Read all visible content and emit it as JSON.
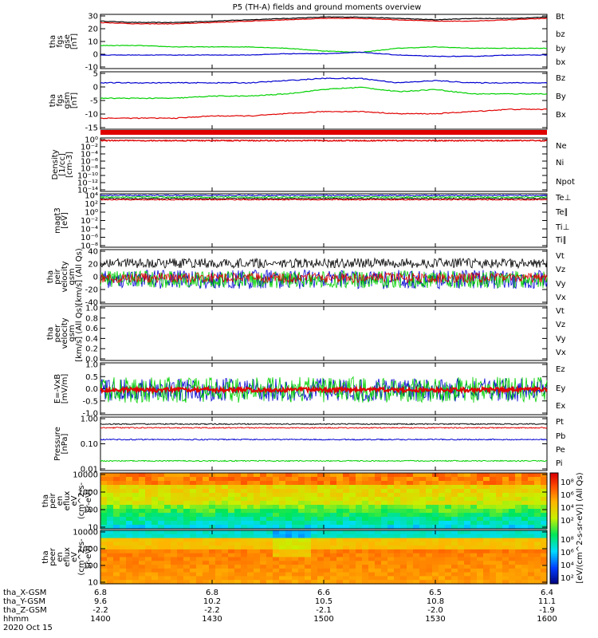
{
  "title": "P5 (TH-A) fields and ground moments overview",
  "colors": {
    "black": "#000000",
    "red": "#e00000",
    "green": "#00d000",
    "blue": "#0000d0"
  },
  "panels": [
    {
      "id": "fgs-gse",
      "ylabel": [
        "tha",
        "fgs",
        "gse",
        "[nT]"
      ],
      "yticks": [
        "30",
        "20",
        "10",
        "0",
        "-10"
      ],
      "legend": [
        {
          "label": "Bt",
          "color": "black"
        },
        {
          "label": "bz",
          "color": "red"
        },
        {
          "label": "by",
          "color": "green"
        },
        {
          "label": "bx",
          "color": "blue"
        }
      ],
      "ylim": [
        -10,
        30
      ],
      "series": [
        {
          "name": "Bt",
          "color": "black",
          "values": [
            25,
            24,
            24,
            25,
            26,
            27,
            28,
            28,
            27,
            26,
            27,
            27,
            28
          ]
        },
        {
          "name": "bz",
          "color": "red",
          "values": [
            24,
            23,
            23,
            24,
            25,
            26,
            27,
            27,
            26,
            25,
            25,
            26,
            27
          ]
        },
        {
          "name": "by",
          "color": "green",
          "values": [
            7,
            7,
            6,
            6,
            6,
            5,
            3,
            2,
            5,
            6,
            5,
            5,
            5
          ]
        },
        {
          "name": "bx",
          "color": "blue",
          "values": [
            0,
            0,
            0,
            0,
            0,
            1,
            1,
            2,
            0,
            -1,
            -1,
            0,
            0
          ]
        }
      ]
    },
    {
      "id": "fgs-gsm",
      "ylabel": [
        "tha",
        "fgs",
        "gsm",
        "[nT]"
      ],
      "yticks": [
        "5",
        "0",
        "-5",
        "-10",
        "-15"
      ],
      "legend": [
        {
          "label": "Bz",
          "color": "red"
        },
        {
          "label": "By",
          "color": "green"
        },
        {
          "label": "Bx",
          "color": "blue"
        }
      ],
      "ylim": [
        -18,
        8
      ],
      "series": [
        {
          "name": "By",
          "color": "green",
          "values": [
            -4,
            -4,
            -4,
            -3,
            -3,
            -2,
            0,
            1,
            -1,
            0,
            -2,
            -2,
            -2
          ]
        },
        {
          "name": "Bx",
          "color": "blue",
          "values": [
            3,
            3,
            3,
            3,
            3,
            4,
            5,
            5,
            3,
            4,
            3,
            3,
            3
          ]
        },
        {
          "name": "Bz",
          "color": "red",
          "values": [
            -13,
            -13,
            -13,
            -12,
            -12,
            -11,
            -10,
            -10,
            -11,
            -11,
            -10,
            -9,
            -9
          ]
        }
      ]
    },
    {
      "id": "density",
      "ylabel": [
        "Density",
        "[1/cc]",
        "[cm-3]"
      ],
      "yticks": [
        "10⁰",
        "10⁻²",
        "10⁻⁴",
        "10⁻⁶",
        "10⁻⁸",
        "10⁻¹⁰",
        "10⁻¹²",
        "10⁻¹⁴"
      ],
      "legend": [
        {
          "label": "Ne",
          "color": "red"
        },
        {
          "label": "Ni",
          "color": "black"
        },
        {
          "label": "Npot",
          "color": "blue"
        }
      ],
      "series": []
    },
    {
      "id": "temperature",
      "ylabel": [
        "magt3",
        "[eV]"
      ],
      "yticks": [
        "10⁴",
        "10²",
        "10⁰",
        "10⁻²",
        "10⁻⁴",
        "10⁻⁶",
        "10⁻⁸"
      ],
      "legend": [
        {
          "label": "Te⊥",
          "color": "red"
        },
        {
          "label": "Te∥",
          "color": "black"
        },
        {
          "label": "Ti⊥",
          "color": "blue"
        },
        {
          "label": "Ti∥",
          "color": "green"
        }
      ],
      "series": []
    },
    {
      "id": "peir-velocity",
      "ylabel": [
        "tha",
        "peir",
        "velocity",
        "gsm",
        "[km/s] (All Qs)"
      ],
      "yticks": [
        "40",
        "20",
        "0",
        "-20",
        "-40"
      ],
      "legend": [
        {
          "label": "Vt",
          "color": "black"
        },
        {
          "label": "Vz",
          "color": "red"
        },
        {
          "label": "Vy",
          "color": "green"
        },
        {
          "label": "Vx",
          "color": "blue"
        }
      ],
      "series": []
    },
    {
      "id": "peer-velocity",
      "ylabel": [
        "tha",
        "peer",
        "velocity",
        "gsm",
        "[km/s] (All Qs)"
      ],
      "yticks": [
        "1.0",
        "0.8",
        "0.6",
        "0.4",
        "0.2",
        "0.0"
      ],
      "legend": [
        {
          "label": "Vt",
          "color": "black"
        },
        {
          "label": "Vz",
          "color": "red"
        },
        {
          "label": "Vy",
          "color": "green"
        },
        {
          "label": "Vx",
          "color": "blue"
        }
      ],
      "series": []
    },
    {
      "id": "efield",
      "ylabel": [
        "E=-VxB",
        "[mV/m]"
      ],
      "yticks": [
        "1.0",
        "0.5",
        "0.0",
        "-0.5",
        "-1.0"
      ],
      "legend": [
        {
          "label": "Ez",
          "color": "red"
        },
        {
          "label": "Ey",
          "color": "green"
        },
        {
          "label": "Ex",
          "color": "blue"
        }
      ],
      "series": []
    },
    {
      "id": "pressure",
      "ylabel": [
        "Pressure",
        "[nPa]"
      ],
      "yticks": [
        "1.00",
        "0.10",
        "0.01"
      ],
      "legend": [
        {
          "label": "Pt",
          "color": "black"
        },
        {
          "label": "Pb",
          "color": "red"
        },
        {
          "label": "Pe",
          "color": "green"
        },
        {
          "label": "Pi",
          "color": "blue"
        }
      ],
      "series": []
    },
    {
      "id": "peir-eflux",
      "ylabel": [
        "tha",
        "peir",
        "en",
        "eflux",
        "eV",
        "(cm^2-s-",
        "sr-eV)"
      ],
      "yticks": [
        "10000",
        "1000",
        "100",
        "10"
      ],
      "legend": []
    },
    {
      "id": "peer-eflux",
      "ylabel": [
        "tha",
        "peer",
        "en",
        "eflux",
        "eV",
        "(cm^2-s-",
        "sr-eV)"
      ],
      "yticks": [
        "10000",
        "1000",
        "100",
        "10"
      ],
      "legend": []
    }
  ],
  "colorbar": {
    "label": "[eV/(cm^2-s-sr-eV)] (All Qs)",
    "ticks_top": [
      "10⁸",
      "10⁶",
      "10⁴",
      "10²"
    ],
    "ticks_bottom": [
      "10⁸",
      "10⁶",
      "10⁴",
      "10²"
    ]
  },
  "ephemeris": {
    "rows": [
      {
        "label": "tha_X-GSM",
        "values": [
          "6.8",
          "6.8",
          "6.6",
          "6.5",
          "6.4"
        ]
      },
      {
        "label": "tha_Y-GSM",
        "values": [
          "9.6",
          "10.2",
          "10.5",
          "10.8",
          "11.1"
        ]
      },
      {
        "label": "tha_Z-GSM",
        "values": [
          "-2.2",
          "-2.2",
          "-2.1",
          "-2.0",
          "-1.9"
        ]
      },
      {
        "label": "hhmm",
        "values": [
          "1400",
          "1430",
          "1500",
          "1530",
          "1600"
        ]
      }
    ],
    "date": "2020 Oct 15"
  }
}
